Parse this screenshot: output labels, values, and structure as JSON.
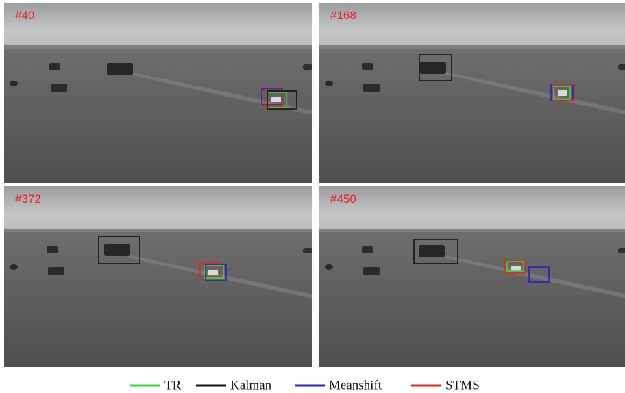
{
  "panels": [
    {
      "label": "#40"
    },
    {
      "label": "#168"
    },
    {
      "label": "#372"
    },
    {
      "label": "#450"
    }
  ],
  "legend": [
    {
      "name": "TR",
      "color": "#33dd33"
    },
    {
      "name": "Kalman",
      "color": "#111111"
    },
    {
      "name": "Meanshift",
      "color": "#2222cc"
    },
    {
      "name": "STMS",
      "color": "#ee2222"
    }
  ]
}
